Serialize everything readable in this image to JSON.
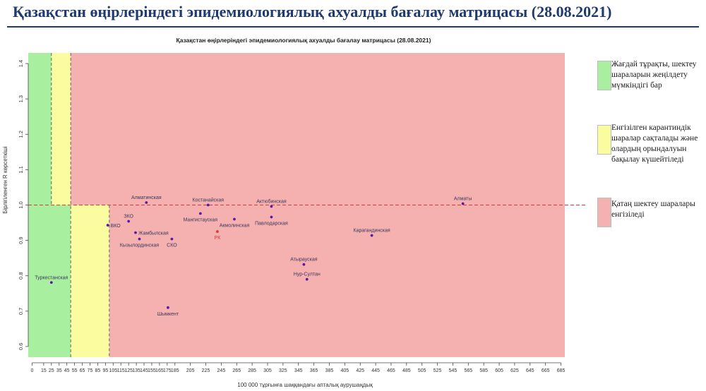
{
  "slide": {
    "title": "Қазақстан өңірлеріндегі эпидемиологиялық ахуалды бағалау матрицасы  (28.08.2021)"
  },
  "legend": [
    {
      "label": "Жағдай тұрақты, шектеу шараларын жеңілдету мүмкіндігі бар",
      "color": "#a8efa0"
    },
    {
      "label": "Енгізілген карантиндік шаралар сақталады және олардың орындалуын бақылау күшейтіледі",
      "color": "#fbfba0"
    },
    {
      "label": "Қатаң шектеу шаралары енгізіледі",
      "color": "#f5b0b0"
    }
  ],
  "chart_data": {
    "type": "scatter",
    "title": "Қазақстан өңірлеріндегі эпидемиологиялық ахуалды бағалау матрицасы  (28.08.2021)",
    "xlabel": "",
    "x_note": "100 000 тұрғынға шаққандағы апталық аурушаңдық",
    "ylabel": "Бірлігіленген R көрсеткіші",
    "xlim": [
      -5,
      690
    ],
    "ylim": [
      0.57,
      1.43
    ],
    "x_ticks": [
      0,
      15,
      25,
      35,
      45,
      55,
      65,
      75,
      85,
      95,
      105,
      115,
      125,
      135,
      145,
      155,
      165,
      175,
      185,
      205,
      225,
      245,
      265,
      285,
      305,
      325,
      345,
      365,
      385,
      405,
      425,
      445,
      465,
      485,
      505,
      525,
      545,
      565,
      585,
      605,
      625,
      645,
      665,
      685
    ],
    "y_ticks": [
      0.6,
      0.7,
      0.8,
      0.9,
      1.0,
      1.1,
      1.2,
      1.3,
      1.4
    ],
    "grid": false,
    "reference_line": {
      "y": 1.0,
      "color": "#d43a3a"
    },
    "zones": [
      {
        "name": "green",
        "color": "#a8efa0",
        "x0": 0,
        "x1": 50,
        "y0": 0.57,
        "y1": 1.43
      },
      {
        "name": "yellow-upper",
        "color": "#fbfba0",
        "x0": 25,
        "x1": 50,
        "y0": 1.0,
        "y1": 1.43
      },
      {
        "name": "yellow-lower",
        "color": "#fbfba0",
        "x0": 50,
        "x1": 100,
        "y0": 0.57,
        "y1": 1.0
      },
      {
        "name": "red",
        "color": "#f5b0b0",
        "x0": 50,
        "x1": 690,
        "y0": 1.0,
        "y1": 1.43
      },
      {
        "name": "red-lower",
        "color": "#f5b0b0",
        "x0": 100,
        "x1": 690,
        "y0": 0.57,
        "y1": 1.0
      }
    ],
    "points": [
      {
        "label": "Алматинская",
        "x": 148,
        "y": 1.007,
        "color": "#5b1aa6",
        "label_pos": "above"
      },
      {
        "label": "Костанайская",
        "x": 228,
        "y": 1.0,
        "color": "#5b1aa6",
        "label_pos": "above"
      },
      {
        "label": "Актюбинская",
        "x": 310,
        "y": 0.996,
        "color": "#5b1aa6",
        "label_pos": "above"
      },
      {
        "label": "Алматы",
        "x": 558,
        "y": 1.004,
        "color": "#5b1aa6",
        "label_pos": "above"
      },
      {
        "label": "ЗКО",
        "x": 125,
        "y": 0.954,
        "color": "#5b1aa6",
        "label_pos": "above"
      },
      {
        "label": "ВКО",
        "x": 98,
        "y": 0.943,
        "color": "#5b1aa6",
        "label_pos": "right"
      },
      {
        "label": "Мангистауская",
        "x": 218,
        "y": 0.976,
        "color": "#5b1aa6",
        "label_pos": "below"
      },
      {
        "label": "Павлодарская",
        "x": 310,
        "y": 0.966,
        "color": "#5b1aa6",
        "label_pos": "below"
      },
      {
        "label": "Акмолинская",
        "x": 262,
        "y": 0.96,
        "color": "#5b1aa6",
        "label_pos": "below"
      },
      {
        "label": "Жамбылская",
        "x": 134,
        "y": 0.922,
        "color": "#5b1aa6",
        "label_pos": "right"
      },
      {
        "label": "РК",
        "x": 240,
        "y": 0.925,
        "color": "#d43a3a",
        "label_pos": "below"
      },
      {
        "label": "Карагандинская",
        "x": 440,
        "y": 0.914,
        "color": "#5b1aa6",
        "label_pos": "above"
      },
      {
        "label": "Кызылординская",
        "x": 139,
        "y": 0.904,
        "color": "#5b1aa6",
        "label_pos": "below"
      },
      {
        "label": "СКО",
        "x": 181,
        "y": 0.904,
        "color": "#5b1aa6",
        "label_pos": "below"
      },
      {
        "label": "Атырауская",
        "x": 352,
        "y": 0.832,
        "color": "#5b1aa6",
        "label_pos": "above"
      },
      {
        "label": "Нур-Султан",
        "x": 356,
        "y": 0.79,
        "color": "#5b1aa6",
        "label_pos": "above"
      },
      {
        "label": "Туркестанская",
        "x": 25,
        "y": 0.781,
        "color": "#5b1aa6",
        "label_pos": "above"
      },
      {
        "label": "Шымкент",
        "x": 176,
        "y": 0.71,
        "color": "#5b1aa6",
        "label_pos": "below"
      }
    ]
  }
}
